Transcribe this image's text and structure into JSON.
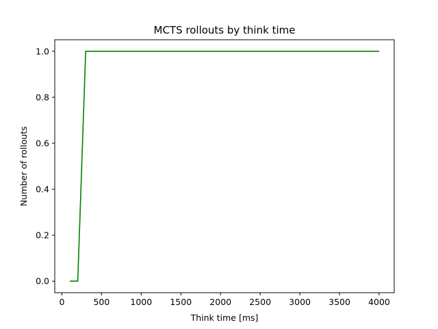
{
  "chart_data": {
    "type": "line",
    "title": "MCTS rollouts by think time",
    "xlabel": "Think time [ms]",
    "ylabel": "Number of rollouts",
    "xlim": [
      -90,
      4190
    ],
    "ylim": [
      -0.05,
      1.05
    ],
    "xticks": [
      0,
      500,
      1000,
      1500,
      2000,
      2500,
      3000,
      3500,
      4000
    ],
    "xtick_labels": [
      "0",
      "500",
      "1000",
      "1500",
      "2000",
      "2500",
      "3000",
      "3500",
      "4000"
    ],
    "yticks": [
      0.0,
      0.2,
      0.4,
      0.6,
      0.8,
      1.0
    ],
    "ytick_labels": [
      "0.0",
      "0.2",
      "0.4",
      "0.6",
      "0.8",
      "1.0"
    ],
    "grid": false,
    "series": [
      {
        "color": "#008000",
        "x": [
          100,
          200,
          300,
          400,
          500,
          600,
          700,
          800,
          900,
          1000,
          1100,
          1200,
          1300,
          1400,
          1500,
          1600,
          1700,
          1800,
          1900,
          2000,
          2100,
          2200,
          2300,
          2400,
          2500,
          2600,
          2700,
          2800,
          2900,
          3000,
          3100,
          3200,
          3300,
          3400,
          3500,
          3600,
          3700,
          3800,
          3900,
          4000
        ],
        "y": [
          0,
          0,
          1,
          1,
          1,
          1,
          1,
          1,
          1,
          1,
          1,
          1,
          1,
          1,
          1,
          1,
          1,
          1,
          1,
          1,
          1,
          1,
          1,
          1,
          1,
          1,
          1,
          1,
          1,
          1,
          1,
          1,
          1,
          1,
          1,
          1,
          1,
          1,
          1,
          1
        ]
      }
    ]
  }
}
